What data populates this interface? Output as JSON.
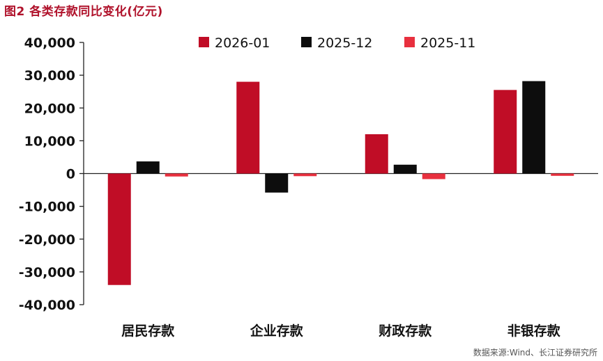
{
  "title": "图2  各类存款同比变化(亿元)",
  "source": "数据来源:Wind、长江证券研究所",
  "chart_data": {
    "type": "bar",
    "title": "图2  各类存款同比变化(亿元)",
    "categories": [
      "居民存款",
      "企业存款",
      "财政存款",
      "非银存款"
    ],
    "series": [
      {
        "name": "2026-01",
        "color": "#c00d26",
        "values": [
          -34000,
          28000,
          12000,
          25500
        ]
      },
      {
        "name": "2025-12",
        "color": "#0d0d0d",
        "values": [
          3700,
          -5800,
          2700,
          28200
        ]
      },
      {
        "name": "2025-11",
        "color": "#e8303e",
        "values": [
          -900,
          -800,
          -1700,
          -700
        ]
      }
    ],
    "ylim": [
      -40000,
      40000
    ],
    "yticks": [
      "40,000",
      "30,000",
      "20,000",
      "10,000",
      "0",
      "-10,000",
      "-20,000",
      "-30,000",
      "-40,000"
    ],
    "ytick_values": [
      40000,
      30000,
      20000,
      10000,
      0,
      -10000,
      -20000,
      -30000,
      -40000
    ],
    "legend_position": "top",
    "grid": false
  }
}
